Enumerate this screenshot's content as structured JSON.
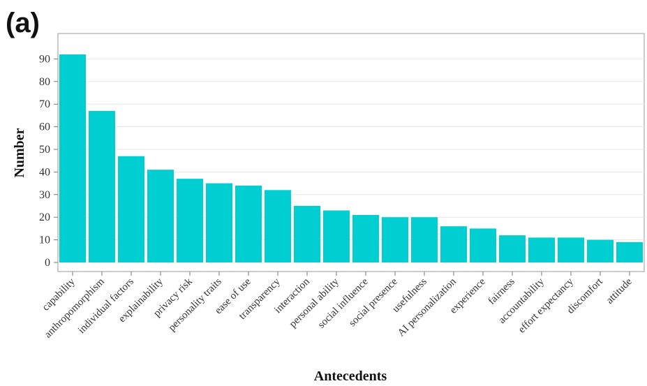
{
  "panel_label": "(a)",
  "chart_data": {
    "type": "bar",
    "xlabel": "Antecedents",
    "ylabel": "Number",
    "ylim": [
      0,
      96
    ],
    "yticks": [
      0,
      10,
      20,
      30,
      40,
      50,
      60,
      70,
      80,
      90
    ],
    "grid": "horizontal",
    "bar_color": "#00CED1",
    "categories": [
      "capability",
      "anthropomorphism",
      "individual factors",
      "explainability",
      "privacy risk",
      "personality traits",
      "ease of use",
      "transparency",
      "interaction",
      "personal ability",
      "social influence",
      "social presence",
      "usefulness",
      "AI personalization",
      "experience",
      "fairness",
      "accountability",
      "effort expectancy",
      "discomfort",
      "attitude"
    ],
    "values": [
      92,
      67,
      47,
      41,
      37,
      35,
      34,
      32,
      25,
      23,
      21,
      20,
      20,
      16,
      15,
      12,
      11,
      11,
      10,
      9
    ]
  }
}
